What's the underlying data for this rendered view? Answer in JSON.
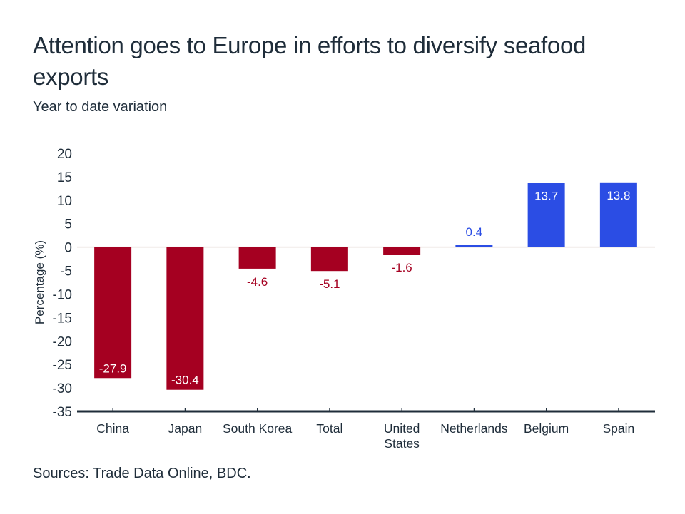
{
  "title": "Attention goes to Europe in efforts to diversify seafood exports",
  "subtitle": "Year to date variation",
  "source": "Sources: Trade Data Online, BDC.",
  "colors": {
    "negative": "#a50021",
    "positive": "#2b4de4",
    "text": "#1f2d3a",
    "axis": "#1f2d3a",
    "zero_line": "#e3d6d2",
    "label_on_bar": "#ffffff"
  },
  "chart_data": {
    "type": "bar",
    "title": "Attention goes to Europe in efforts to diversify seafood exports",
    "subtitle": "Year to date variation",
    "xlabel": "",
    "ylabel": "Percentage (%)",
    "ylim": [
      -35,
      20
    ],
    "yticks": [
      20,
      15,
      10,
      5,
      0,
      -5,
      -10,
      -15,
      -20,
      -25,
      -30,
      -35
    ],
    "grid": false,
    "legend": "none",
    "categories": [
      [
        "China"
      ],
      [
        "Japan"
      ],
      [
        "South Korea"
      ],
      [
        "Total"
      ],
      [
        "United",
        "States"
      ],
      [
        "Netherlands"
      ],
      [
        "Belgium"
      ],
      [
        "Spain"
      ]
    ],
    "values": [
      -27.9,
      -30.4,
      -4.6,
      -5.1,
      -1.6,
      0.4,
      13.7,
      13.8
    ],
    "labels": [
      "-27.9",
      "-30.4",
      "-4.6",
      "-5.1",
      "-1.6",
      "0.4",
      "13.7",
      "13.8"
    ],
    "label_inside": [
      true,
      true,
      false,
      false,
      false,
      false,
      true,
      true
    ]
  }
}
